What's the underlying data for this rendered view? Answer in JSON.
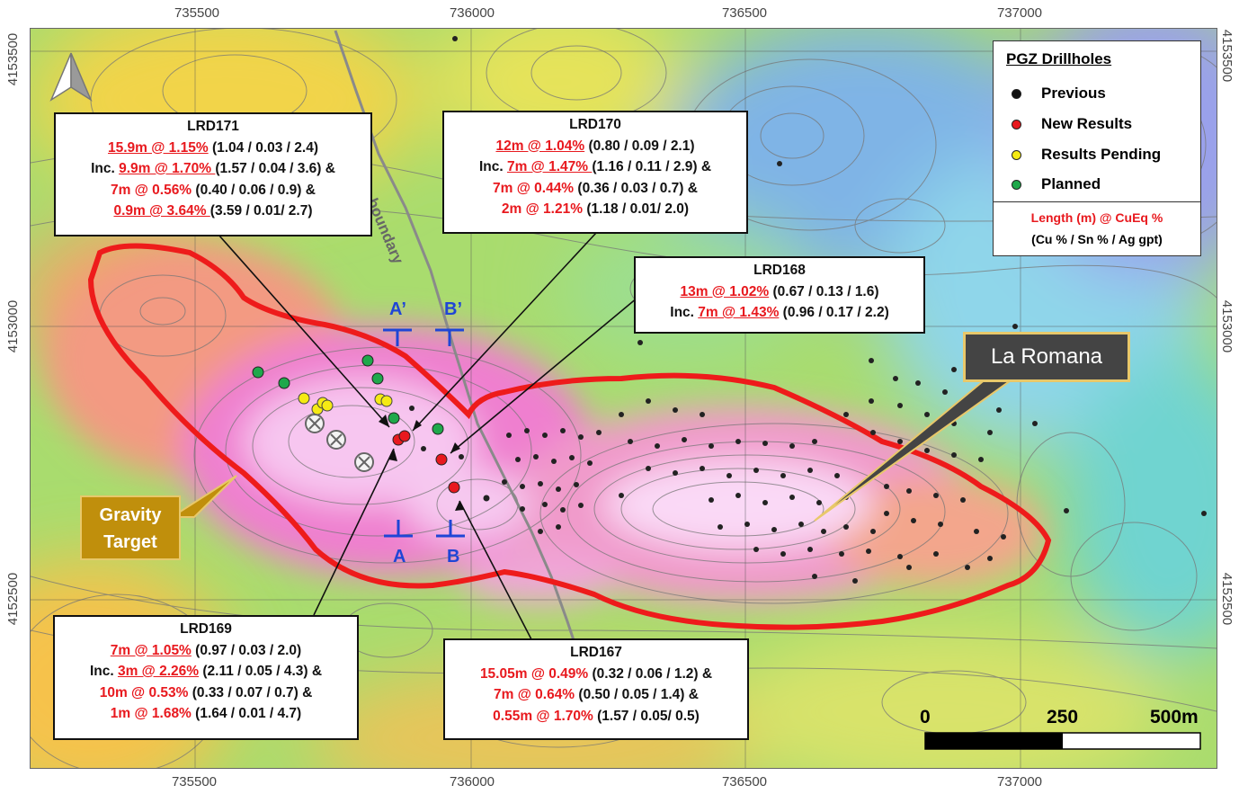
{
  "axes": {
    "x_ticks": [
      "735500",
      "736000",
      "736500",
      "737000"
    ],
    "y_ticks": [
      "4153500",
      "4153000",
      "4152500"
    ]
  },
  "legend": {
    "title": "PGZ Drillholes",
    "items": [
      {
        "label": "Previous",
        "color": "#111111"
      },
      {
        "label": "New Results",
        "color": "#e8191e"
      },
      {
        "label": "Results Pending",
        "color": "#f5ea14"
      },
      {
        "label": "Planned",
        "color": "#1fa84b"
      }
    ],
    "formula_line1": "Length (m) @ CuEq %",
    "formula_line2": "(Cu % / Sn % / Ag gpt)"
  },
  "callouts": {
    "lrd171": {
      "title": "LRD171",
      "l1a": "15.9m @ 1.15%",
      "l1b": " (1.04 / 0.03 / 2.4)",
      "l2p": "Inc. ",
      "l2a": "9.9m @ 1.70% ",
      "l2b": "(1.57 / 0.04 / 3.6) &",
      "l3a": "7m @ 0.56%",
      "l3b": " (0.40 / 0.06 / 0.9) &",
      "l4a": "0.9m @ 3.64% ",
      "l4b": "(3.59 / 0.01/ 2.7)"
    },
    "lrd170": {
      "title": "LRD170",
      "l1a": "12m @ 1.04%",
      "l1b": " (0.80 / 0.09 / 2.1)",
      "l2p": "Inc. ",
      "l2a": "7m @ 1.47% ",
      "l2b": "(1.16 / 0.11 / 2.9) &",
      "l3a": "7m @ 0.44%",
      "l3b": " (0.36 / 0.03 / 0.7) &",
      "l4a": "2m @ 1.21%",
      "l4b": " (1.18 / 0.01/ 2.0)"
    },
    "lrd168": {
      "title": "LRD168",
      "l1a": "13m @ 1.02%",
      "l1b": " (0.67 / 0.13 / 1.6)",
      "l2p": "Inc. ",
      "l2a": "7m @ 1.43%",
      "l2b": " (0.96 / 0.17 / 2.2)"
    },
    "lrd169": {
      "title": "LRD169",
      "l1a": "7m @ 1.05%",
      "l1b": " (0.97 / 0.03 / 2.0)",
      "l2p": "Inc. ",
      "l2a": "3m @ 2.26%",
      "l2b": " (2.11 / 0.05 / 4.3) &",
      "l3a": "10m @ 0.53%",
      "l3b": " (0.33 / 0.07 / 0.7) &",
      "l4a": "1m @ 1.68%",
      "l4b": " (1.64 / 0.01 / 4.7)"
    },
    "lrd167": {
      "title": "LRD167",
      "l1a": "15.05m @ 0.49%",
      "l1b": " (0.32 / 0.06 / 1.2) &",
      "l3a": "7m @ 0.64%",
      "l3b": " (0.50 / 0.05 / 1.4) &",
      "l4a": "0.55m @ 1.70%",
      "l4b": " (1.57 / 0.05/ 0.5)"
    }
  },
  "labels": {
    "la_romana": "La Romana",
    "gravity_1": "Gravity",
    "gravity_2": "Target",
    "farm_boundary": "Farm boundary",
    "section_a": "A",
    "section_a_prime": "A’",
    "section_b": "B",
    "section_b_prime": "B’"
  },
  "scale_bar": {
    "labels": [
      "0",
      "250",
      "500m"
    ]
  }
}
